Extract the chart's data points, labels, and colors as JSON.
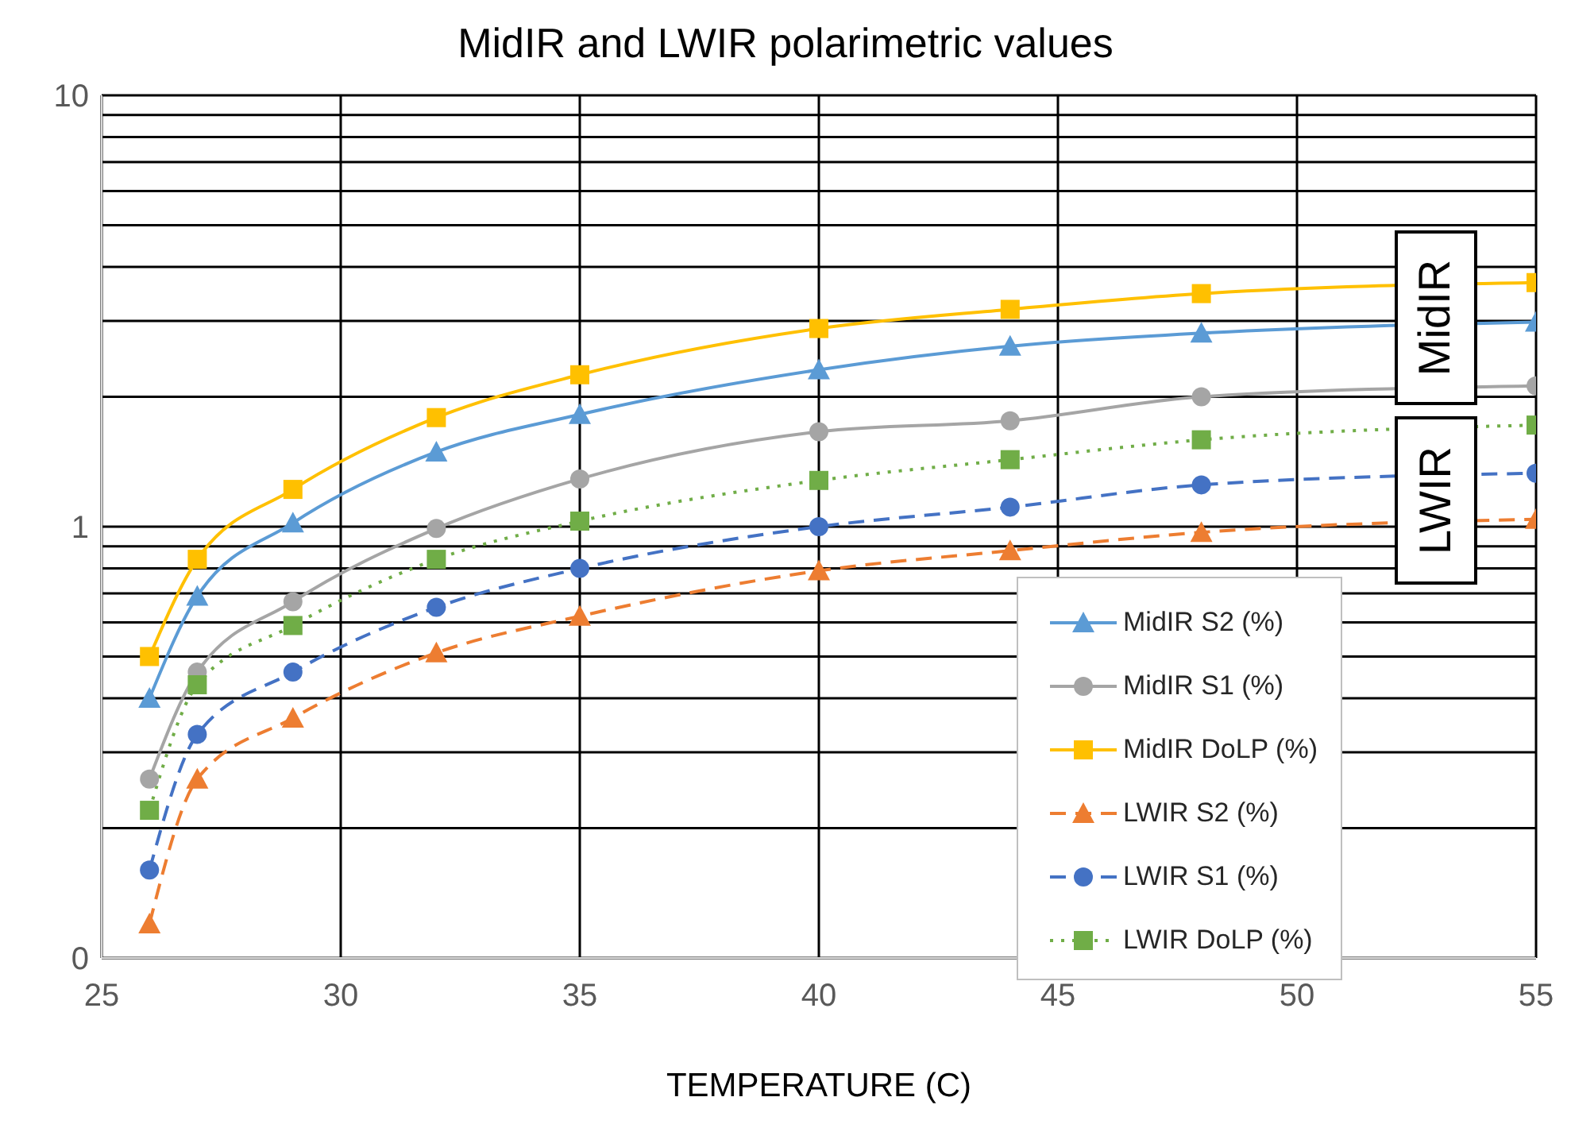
{
  "chart_data": {
    "type": "line",
    "title": "MidIR and LWIR polarimetric values",
    "xlabel": "TEMPERATURE (C)",
    "x": [
      26,
      27,
      29,
      32,
      35,
      40,
      44,
      48,
      55
    ],
    "series": [
      {
        "name": "MidIR S2 (%)",
        "color": "#5b9bd5",
        "marker": "triangle",
        "line_style": "solid",
        "values": [
          0.4,
          0.69,
          1.02,
          1.49,
          1.82,
          2.31,
          2.62,
          2.81,
          2.98
        ]
      },
      {
        "name": "MidIR S1 (%)",
        "color": "#a5a5a5",
        "marker": "circle",
        "line_style": "solid",
        "values": [
          0.26,
          0.46,
          0.67,
          0.99,
          1.29,
          1.66,
          1.76,
          2.0,
          2.12
        ]
      },
      {
        "name": "MidIR DoLP (%)",
        "color": "#ffc000",
        "marker": "square",
        "line_style": "solid",
        "values": [
          0.5,
          0.84,
          1.22,
          1.79,
          2.25,
          2.88,
          3.19,
          3.47,
          3.68
        ]
      },
      {
        "name": "LWIR S2 (%)",
        "color": "#ed7d31",
        "marker": "triangle",
        "line_style": "dashed",
        "values": [
          0.12,
          0.26,
          0.36,
          0.51,
          0.62,
          0.79,
          0.88,
          0.97,
          1.04
        ]
      },
      {
        "name": "LWIR S1 (%)",
        "color": "#4472c4",
        "marker": "circle",
        "line_style": "dashed",
        "values": [
          0.16,
          0.33,
          0.46,
          0.65,
          0.8,
          1.0,
          1.11,
          1.25,
          1.33
        ]
      },
      {
        "name": "LWIR DoLP (%)",
        "color": "#70ad47",
        "marker": "square",
        "line_style": "dotted",
        "values": [
          0.22,
          0.43,
          0.59,
          0.84,
          1.03,
          1.28,
          1.43,
          1.59,
          1.72
        ]
      }
    ],
    "xlim": [
      25,
      55
    ],
    "xticks": [
      25,
      30,
      35,
      40,
      45,
      50,
      55
    ],
    "ylim": [
      0.1,
      10
    ],
    "log": "y",
    "yticks": [
      {
        "value": 0.1,
        "label": "0"
      },
      {
        "value": 0.2,
        "label": null
      },
      {
        "value": 0.3,
        "label": null
      },
      {
        "value": 0.4,
        "label": null
      },
      {
        "value": 0.5,
        "label": null
      },
      {
        "value": 0.6,
        "label": null
      },
      {
        "value": 0.7,
        "label": null
      },
      {
        "value": 0.8,
        "label": null
      },
      {
        "value": 0.9,
        "label": null
      },
      1,
      {
        "value": 2,
        "label": null
      },
      {
        "value": 3,
        "label": null
      },
      {
        "value": 4,
        "label": null
      },
      {
        "value": 5,
        "label": null
      },
      {
        "value": 6,
        "label": null
      },
      {
        "value": 7,
        "label": null
      },
      {
        "value": 8,
        "label": null
      },
      {
        "value": 9,
        "label": null
      },
      10
    ],
    "grid": true,
    "legend": "bottom right",
    "annotations": [
      "MidIR",
      "LWIR"
    ]
  }
}
